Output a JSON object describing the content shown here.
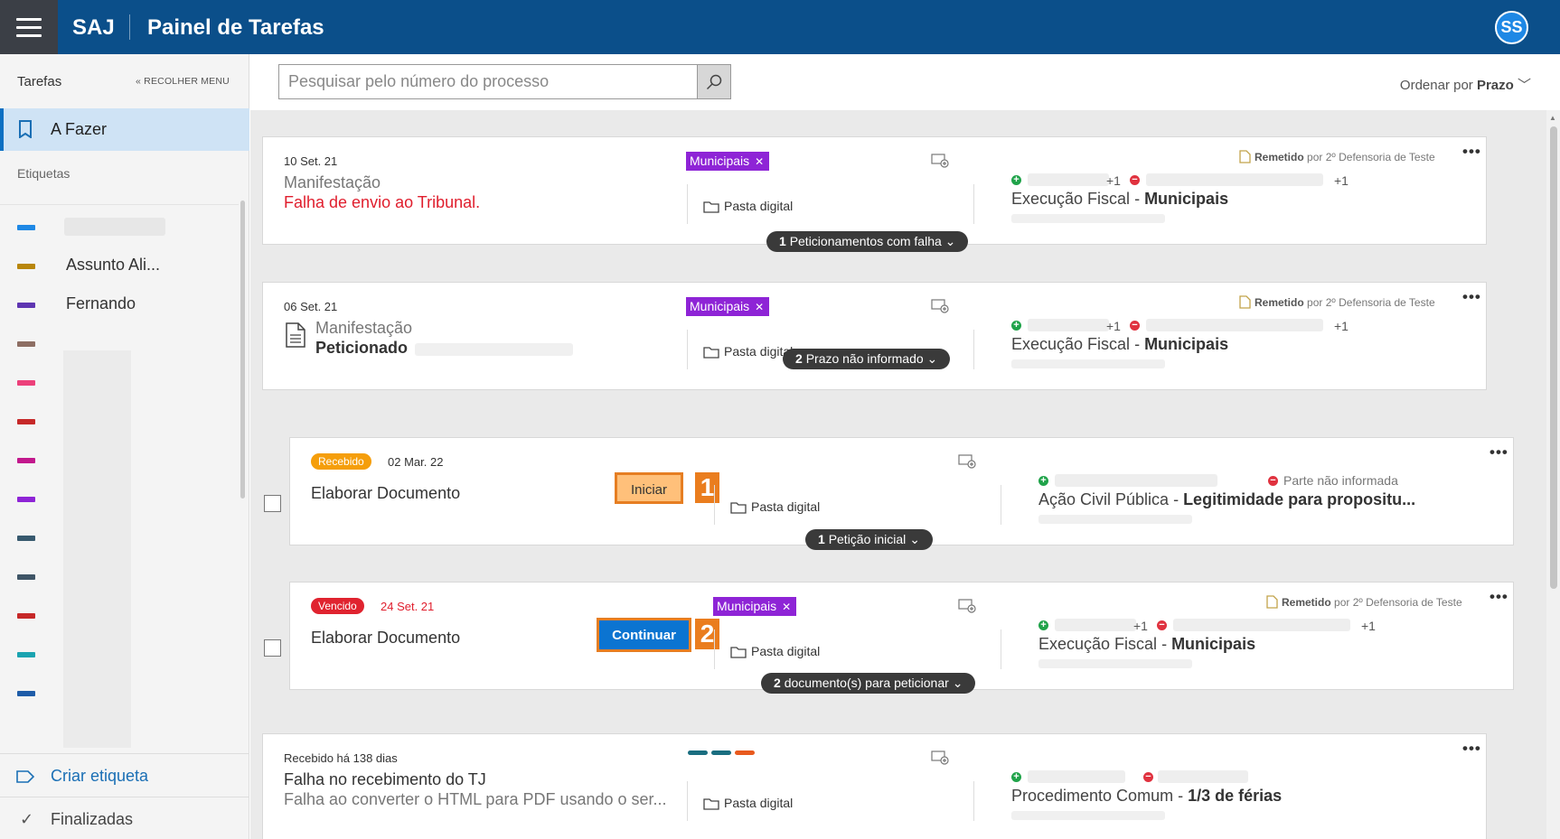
{
  "header": {
    "brand": "SAJ",
    "title": "Painel de Tarefas",
    "avatar": "SS"
  },
  "sidebar": {
    "title": "Tarefas",
    "collapse_label": "RECOLHER MENU",
    "active_item": "A Fazer",
    "tags_title": "Etiquetas",
    "tags": [
      {
        "label": "",
        "color": "#1e88e5"
      },
      {
        "label": "Assunto Ali...",
        "color": "#b8860b"
      },
      {
        "label": "Fernando",
        "color": "#5e35b1"
      },
      {
        "label": "",
        "color": "#8d6e63"
      },
      {
        "label": "",
        "color": "#ec407a"
      },
      {
        "label": "",
        "color": "#c62828"
      },
      {
        "label": "",
        "color": "#c2188c"
      },
      {
        "label": "",
        "color": "#8e24d6"
      },
      {
        "label": "",
        "color": "#37596e"
      },
      {
        "label": "",
        "color": "#3f5566"
      },
      {
        "label": "",
        "color": "#c62828"
      },
      {
        "label": "",
        "color": "#1aa3b0"
      },
      {
        "label": "",
        "color": "#1e5ca8"
      }
    ],
    "create_label": "Criar etiqueta",
    "done_label": "Finalizadas"
  },
  "toolbar": {
    "search_placeholder": "Pesquisar pelo número do processo",
    "sort_prefix": "Ordenar por",
    "sort_value": "Prazo"
  },
  "cards": [
    {
      "date": "10 Set. 21",
      "type": "Manifestação",
      "status": "Falha de envio ao Tribunal.",
      "chip": "Municipais",
      "pasta": "Pasta digital",
      "remetido": "Remetido",
      "remetido_by": "por 2º Defensoria de Teste",
      "plus_a": "+1",
      "plus_b": "+1",
      "proc_class": "Execução Fiscal",
      "proc_subject": "Municipais",
      "pill_count": "1",
      "pill_text": "Peticionamentos com falha"
    },
    {
      "date": "06 Set. 21",
      "type": "Manifestação",
      "status": "Peticionado",
      "chip": "Municipais",
      "pasta": "Pasta digital",
      "remetido": "Remetido",
      "remetido_by": "por 2º Defensoria de Teste",
      "plus_a": "+1",
      "plus_b": "+1",
      "proc_class": "Execução Fiscal",
      "proc_subject": "Municipais",
      "pill_count": "2",
      "pill_text": "Prazo não informado"
    },
    {
      "badge": "Recebido",
      "date": "02 Mar. 22",
      "title": "Elaborar Documento",
      "action": "Iniciar",
      "callout": "1",
      "pasta": "Pasta digital",
      "parte": "Parte não informada",
      "proc_class": "Ação Civil Pública",
      "proc_subject": "Legitimidade para propositu...",
      "pill_count": "1",
      "pill_text": "Petição inicial"
    },
    {
      "badge": "Vencido",
      "date": "24 Set. 21",
      "title": "Elaborar Documento",
      "chip": "Municipais",
      "action": "Continuar",
      "callout": "2",
      "pasta": "Pasta digital",
      "remetido": "Remetido",
      "remetido_by": "por 2º Defensoria de Teste",
      "plus_a": "+1",
      "plus_b": "+1",
      "proc_class": "Execução Fiscal",
      "proc_subject": "Municipais",
      "pill_count": "2",
      "pill_text": "documento(s) para peticionar"
    },
    {
      "date": "Recebido há 138 dias",
      "title": "Falha no recebimento do TJ",
      "subtitle": "Falha ao converter o HTML para PDF usando o ser...",
      "pasta": "Pasta digital",
      "proc_class": "Procedimento Comum",
      "proc_subject": "1/3 de férias",
      "tag_colors": [
        "#1a6e80",
        "#1a6e80",
        "#e85a1e"
      ]
    }
  ],
  "colors": {
    "topbar": "#0b4f8a",
    "accent": "#0b74d1",
    "chip": "#8e24d6",
    "callout": "#ea7d1e"
  }
}
